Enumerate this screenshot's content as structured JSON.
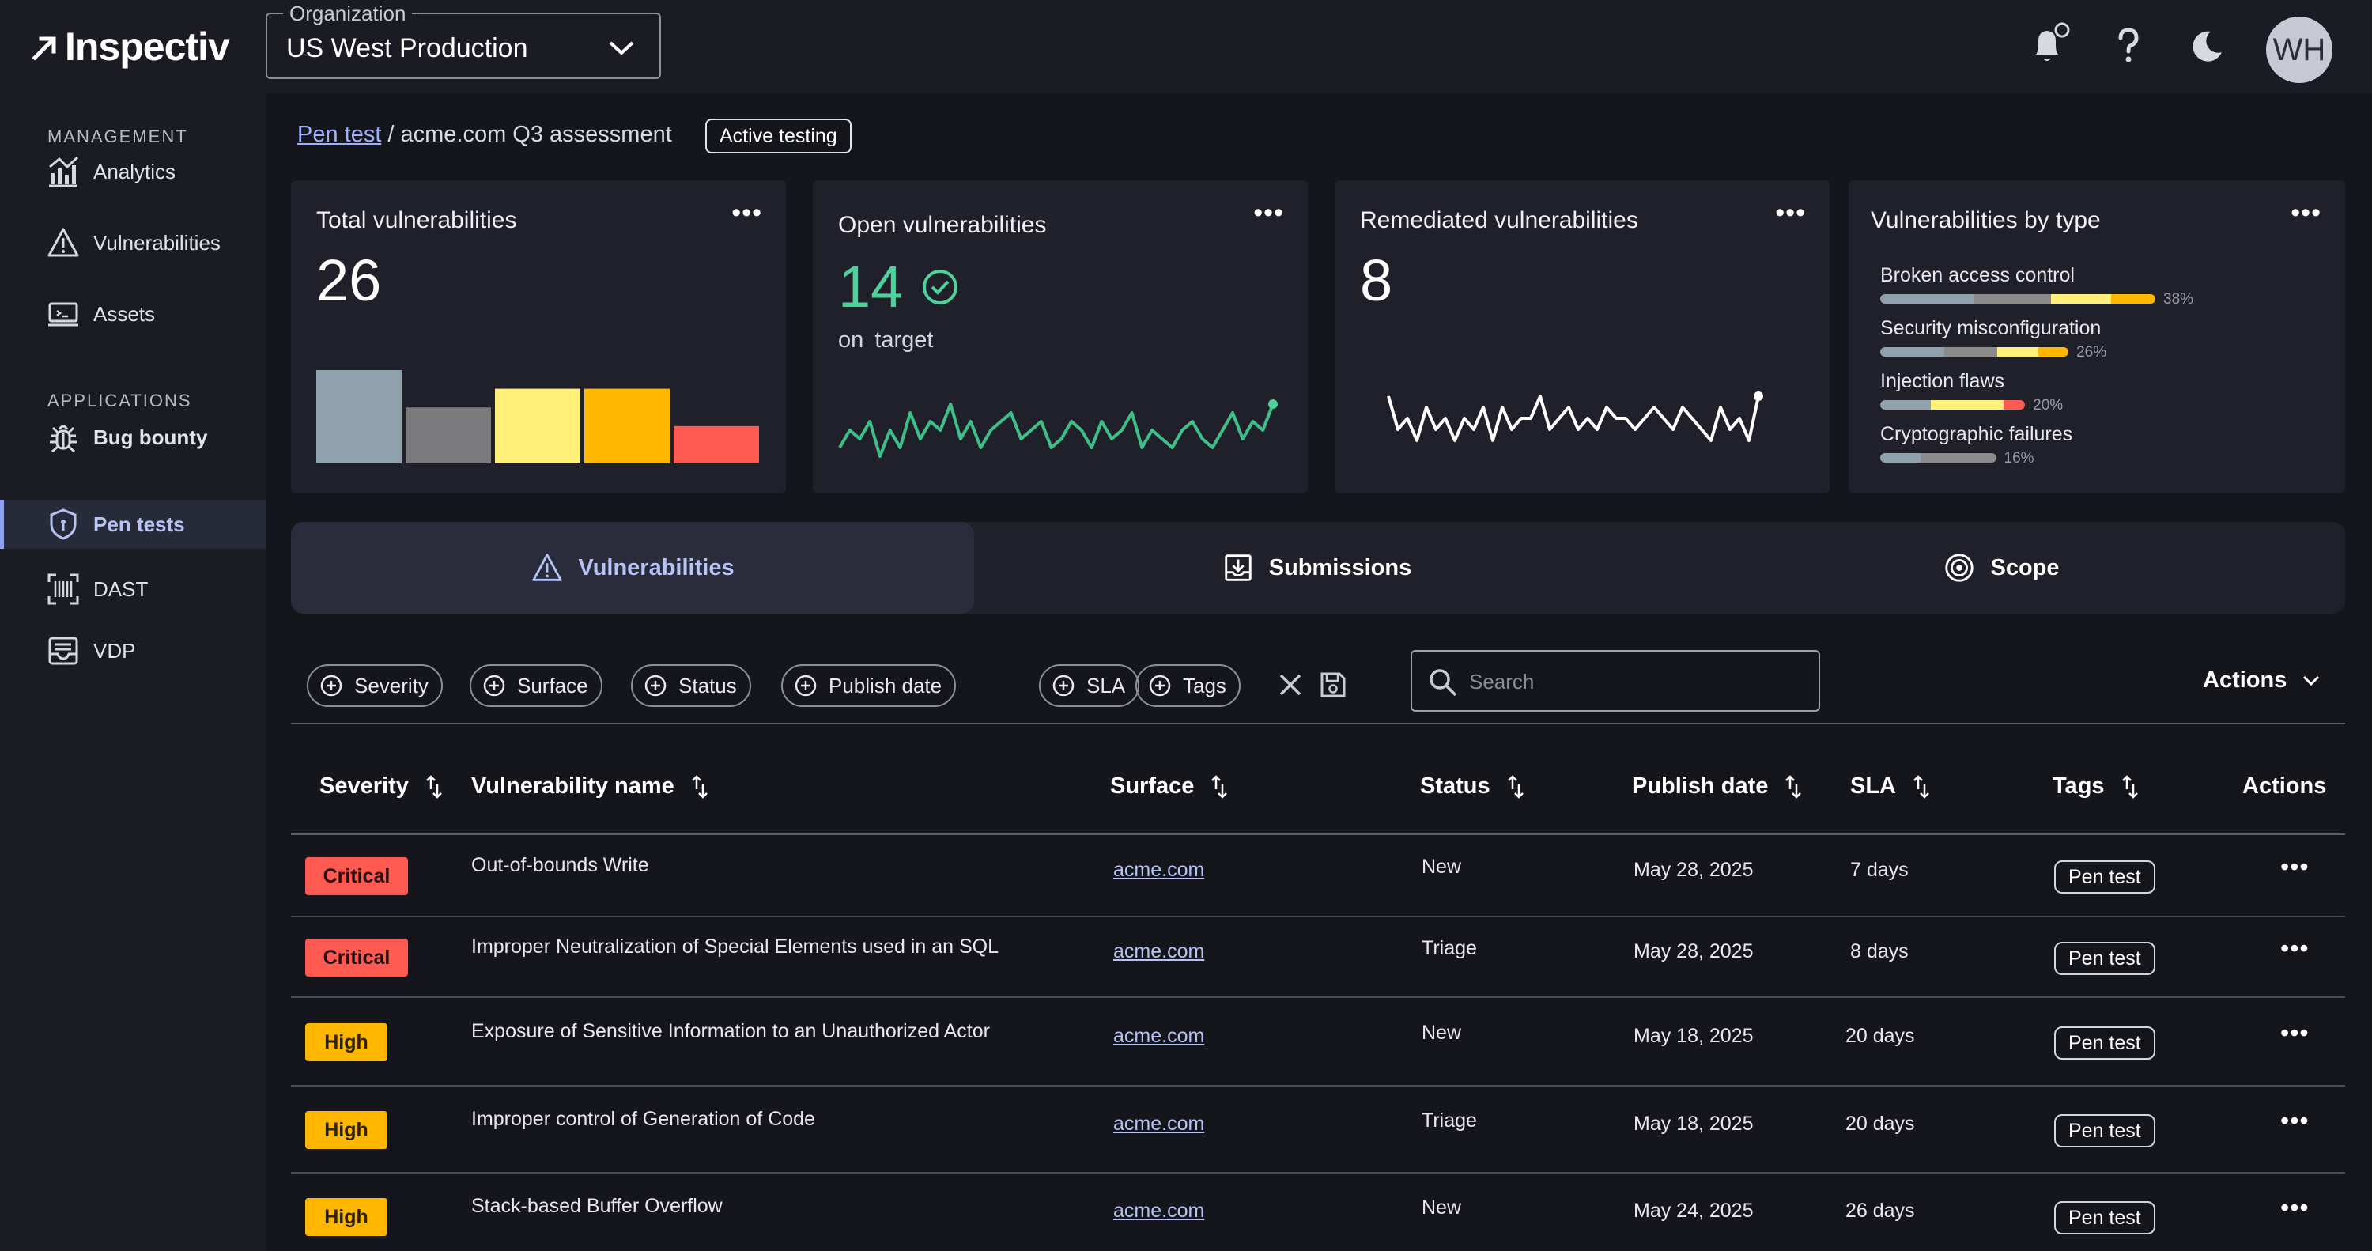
{
  "app": {
    "name": "Inspectiv"
  },
  "org": {
    "label": "Organization",
    "value": "US West Production"
  },
  "user": {
    "initials": "WH"
  },
  "sidebar": {
    "sections": [
      {
        "title": "MANAGEMENT"
      },
      {
        "title": "APPLICATIONS"
      }
    ],
    "items": [
      {
        "label": "Analytics",
        "icon": "analytics-icon"
      },
      {
        "label": "Vulnerabilities",
        "icon": "warning-triangle-icon"
      },
      {
        "label": "Assets",
        "icon": "assets-icon"
      },
      {
        "label": "Bug bounty",
        "icon": "bug-icon"
      },
      {
        "label": "Pen tests",
        "icon": "shield-icon",
        "active": true
      },
      {
        "label": "DAST",
        "icon": "scan-icon"
      },
      {
        "label": "VDP",
        "icon": "inbox-icon"
      }
    ]
  },
  "breadcrumb": {
    "link": "Pen test",
    "separator": "/",
    "current": "acme.com Q3 assessment",
    "badge": "Active testing"
  },
  "cards": {
    "total": {
      "title": "Total vulnerabilities",
      "value": "26",
      "more": "•••",
      "bars": [
        {
          "value": 10,
          "color": "#8fa1ac"
        },
        {
          "value": 6,
          "color": "#7a7a7d"
        },
        {
          "value": 8,
          "color": "#fff07c"
        },
        {
          "value": 8,
          "color": "#ffb700"
        },
        {
          "value": 4,
          "color": "#ff5a52"
        }
      ]
    },
    "open": {
      "title": "Open vulnerabilities",
      "value": "14",
      "sub": "on target",
      "more": "•••",
      "trend": [
        3,
        5,
        4,
        6,
        2,
        5,
        3,
        7,
        4,
        6,
        5,
        8,
        4,
        6,
        3,
        5,
        6,
        7,
        4,
        5,
        6,
        3,
        4,
        6,
        5,
        3,
        6,
        4,
        5,
        7,
        3,
        5,
        4,
        3,
        5,
        6,
        4,
        3,
        5,
        7,
        4,
        6,
        5,
        8
      ]
    },
    "remediated": {
      "title": "Remediated vulnerabilities",
      "value": "8",
      "more": "•••",
      "trend": [
        6,
        3,
        4,
        2,
        5,
        3,
        4,
        2,
        4,
        3,
        5,
        2,
        5,
        3,
        4,
        4,
        6,
        3,
        4,
        5,
        3,
        4,
        3,
        5,
        4,
        4,
        3,
        4,
        5,
        4,
        3,
        5,
        4,
        3,
        2,
        5,
        3,
        4,
        2,
        6
      ]
    },
    "types": {
      "title": "Vulnerabilities by type",
      "more": "•••",
      "items": [
        {
          "label": "Broken access control",
          "pct": "38%",
          "value": 38
        },
        {
          "label": "Security misconfiguration",
          "pct": "26%",
          "value": 26
        },
        {
          "label": "Injection flaws",
          "pct": "20%",
          "value": 20
        },
        {
          "label": "Cryptographic failures",
          "pct": "16%",
          "value": 16
        }
      ]
    }
  },
  "tabs": [
    {
      "label": "Vulnerabilities",
      "active": true
    },
    {
      "label": "Submissions"
    },
    {
      "label": "Scope"
    }
  ],
  "filters": [
    "Severity",
    "Surface",
    "Status",
    "Publish date",
    "SLA",
    "Tags"
  ],
  "search": {
    "placeholder": "Search"
  },
  "actions_label": "Actions",
  "table": {
    "headers": {
      "severity": "Severity",
      "name": "Vulnerability name",
      "surface": "Surface",
      "status": "Status",
      "publish": "Publish date",
      "sla": "SLA",
      "tags": "Tags",
      "actions": "Actions"
    },
    "rows": [
      {
        "severity": "Critical",
        "level": "crit",
        "name": "Out-of-bounds Write",
        "surface": "acme.com",
        "status": "New",
        "publish": "May 28, 2025",
        "sla": "7 days",
        "tag": "Pen test"
      },
      {
        "severity": "Critical",
        "level": "crit",
        "name": "Improper Neutralization of Special Elements used in an SQL",
        "surface": "acme.com",
        "status": "Triage",
        "publish": "May 28, 2025",
        "sla": "8 days",
        "tag": "Pen test"
      },
      {
        "severity": "High",
        "level": "high",
        "name": "Exposure of Sensitive Information to an Unauthorized Actor",
        "surface": "acme.com",
        "status": "New",
        "publish": "May 18, 2025",
        "sla": "20 days",
        "tag": "Pen test"
      },
      {
        "severity": "High",
        "level": "high",
        "name": "Improper control of Generation of Code",
        "surface": "acme.com",
        "status": "Triage",
        "publish": "May 18, 2025",
        "sla": "20 days",
        "tag": "Pen test"
      },
      {
        "severity": "High",
        "level": "high",
        "name": "Stack-based Buffer Overflow",
        "surface": "acme.com",
        "status": "New",
        "publish": "May 24, 2025",
        "sla": "26 days",
        "tag": "Pen test"
      }
    ]
  }
}
